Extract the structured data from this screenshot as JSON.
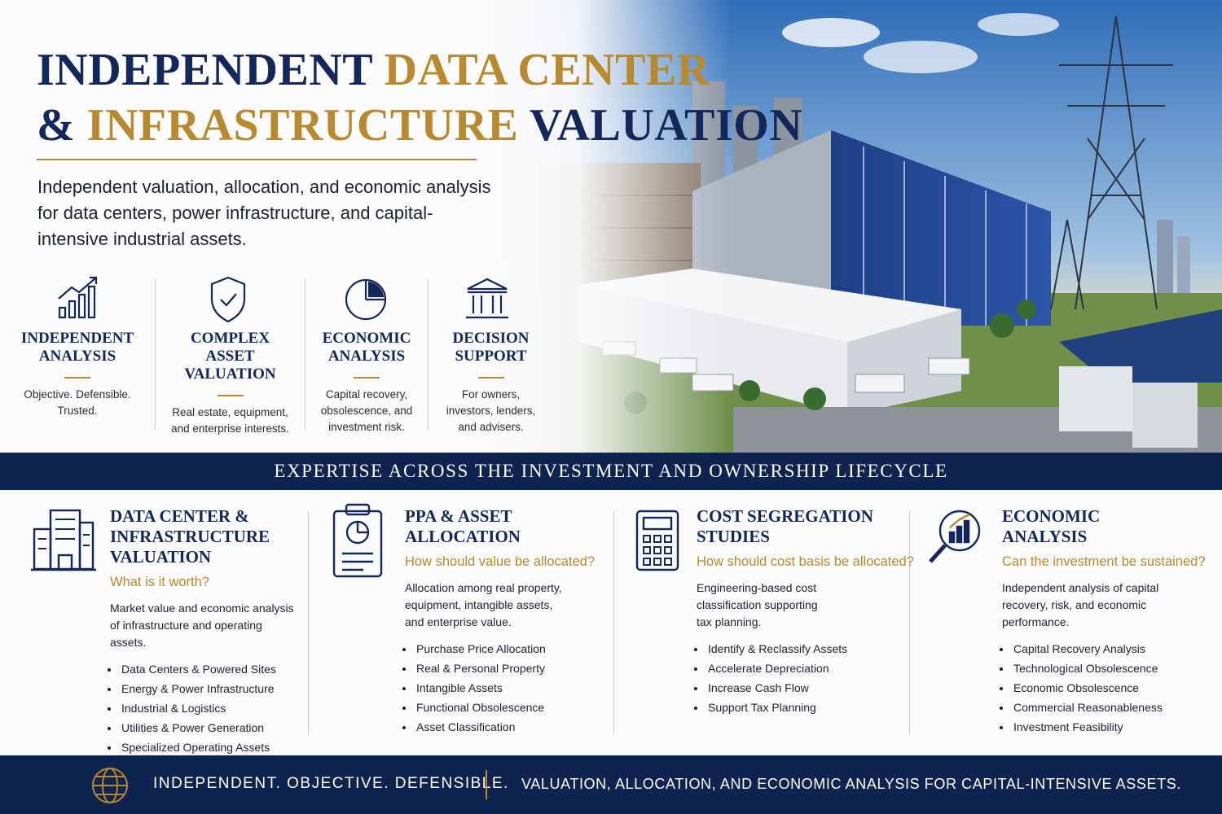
{
  "header": {
    "title": [
      {
        "text": "INDEPENDENT",
        "color": "#13275a"
      },
      {
        "text": "DATA CENTER",
        "color": "#b8892f"
      },
      {
        "text": "&",
        "color": "#13275a"
      },
      {
        "text": "INFRASTRUCTURE",
        "color": "#b8892f"
      },
      {
        "text": "VALUATION",
        "color": "#13275a"
      }
    ],
    "subtitle": "Independent valuation, allocation, and economic analysis for data centers, power infrastructure, and capital-intensive industrial assets."
  },
  "pillars": [
    {
      "title": "INDEPENDENT ANALYSIS",
      "text": "Objective. Defensible. Trusted."
    },
    {
      "title": "COMPLEX ASSET VALUATION",
      "text": "Real estate, equipment, and enterprise interests."
    },
    {
      "title": "ECONOMIC ANALYSIS",
      "text": "Capital recovery, obsolescence, and investment risk."
    },
    {
      "title": "DECISION SUPPORT",
      "text": "For owners, investors, lenders, and advisers."
    }
  ],
  "banner": "EXPERTISE ACROSS THE INVESTMENT AND OWNERSHIP LIFECYCLE",
  "services": [
    {
      "title": "DATA CENTER & INFRASTRUCTURE VALUATION",
      "question": "What is it worth?",
      "description": "Market value and economic analysis of infrastructure and operating assets.",
      "bullets": [
        "Data Centers & Powered Sites",
        "Energy & Power Infrastructure",
        "Industrial & Logistics",
        "Utilities & Power Generation",
        "Specialized Operating Assets"
      ]
    },
    {
      "title": "PPA & ASSET ALLOCATION",
      "question": "How should value be allocated?",
      "description": "Allocation among real property, equipment, intangible assets, and enterprise value.",
      "bullets": [
        "Purchase Price Allocation",
        "Real & Personal Property",
        "Intangible Assets",
        "Functional Obsolescence",
        "Asset Classification"
      ]
    },
    {
      "title": "COST SEGREGATION STUDIES",
      "question": "How should cost basis be allocated?",
      "description": "Engineering-based cost classification supporting tax planning.",
      "bullets": [
        "Identify & Reclassify Assets",
        "Accelerate Depreciation",
        "Increase Cash Flow",
        "Support Tax Planning"
      ]
    },
    {
      "title": "ECONOMIC ANALYSIS",
      "question": "Can the investment be sustained?",
      "description": "Independent analysis of capital recovery, risk, and economic performance.",
      "bullets": [
        "Capital Recovery Analysis",
        "Technological Obsolescence",
        "Economic Obsolescence",
        "Commercial Reasonableness",
        "Investment Feasibility"
      ]
    }
  ],
  "footer": {
    "tagline": "INDEPENDENT. OBJECTIVE. DEFENSIBLE.",
    "statement": "VALUATION, ALLOCATION, AND ECONOMIC ANALYSIS FOR CAPITAL-INTENSIVE ASSETS."
  }
}
